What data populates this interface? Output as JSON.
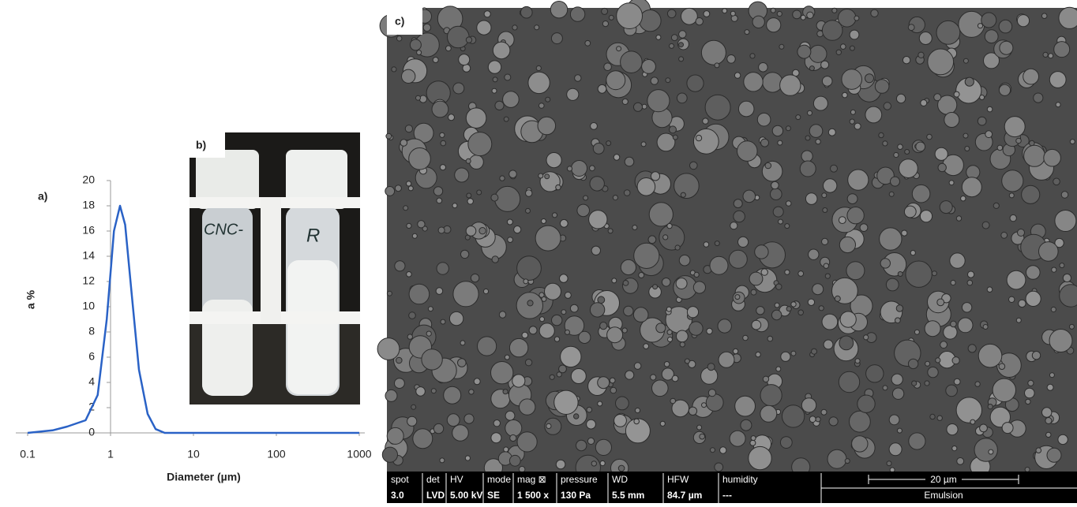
{
  "chart_data": {
    "type": "line",
    "panel_label": "a)",
    "x_label": "Diameter (µm)",
    "y_label": "a %",
    "x_scale": "log",
    "y_axis_cross": 1,
    "x": [
      0.1,
      0.2,
      0.3,
      0.5,
      0.7,
      0.9,
      1.1,
      1.3,
      1.5,
      1.8,
      2.2,
      2.8,
      3.5,
      4.5,
      10,
      100,
      1000
    ],
    "series": [
      {
        "color": "#2a62c6",
        "values": [
          0,
          0.2,
          0.5,
          1,
          3,
          9,
          16,
          18,
          16.5,
          11,
          5,
          1.5,
          0.3,
          0,
          0,
          0,
          0
        ]
      }
    ],
    "xlim": [
      0.1,
      1000
    ],
    "xticks": [
      0.1,
      1,
      10,
      100,
      1000
    ],
    "ylim": [
      0,
      20
    ],
    "yticks": [
      0,
      2,
      4,
      6,
      8,
      10,
      12,
      14,
      16,
      18,
      20
    ]
  },
  "photo": {
    "panel_label": "b)",
    "tube_labels": [
      "CNC-",
      "R"
    ]
  },
  "micrograph": {
    "panel_label": "c)",
    "info_headers": [
      "spot",
      "det",
      "HV",
      "mode",
      "mag ⊠",
      "pressure",
      "WD",
      "HFW",
      "humidity"
    ],
    "info_values": [
      "3.0",
      "LVD",
      "5.00 kV",
      "SE",
      "1 500 x",
      "130 Pa",
      "5.5 mm",
      "84.7 µm",
      "---"
    ],
    "scale_bar": "20 µm",
    "sample": "Emulsion"
  }
}
